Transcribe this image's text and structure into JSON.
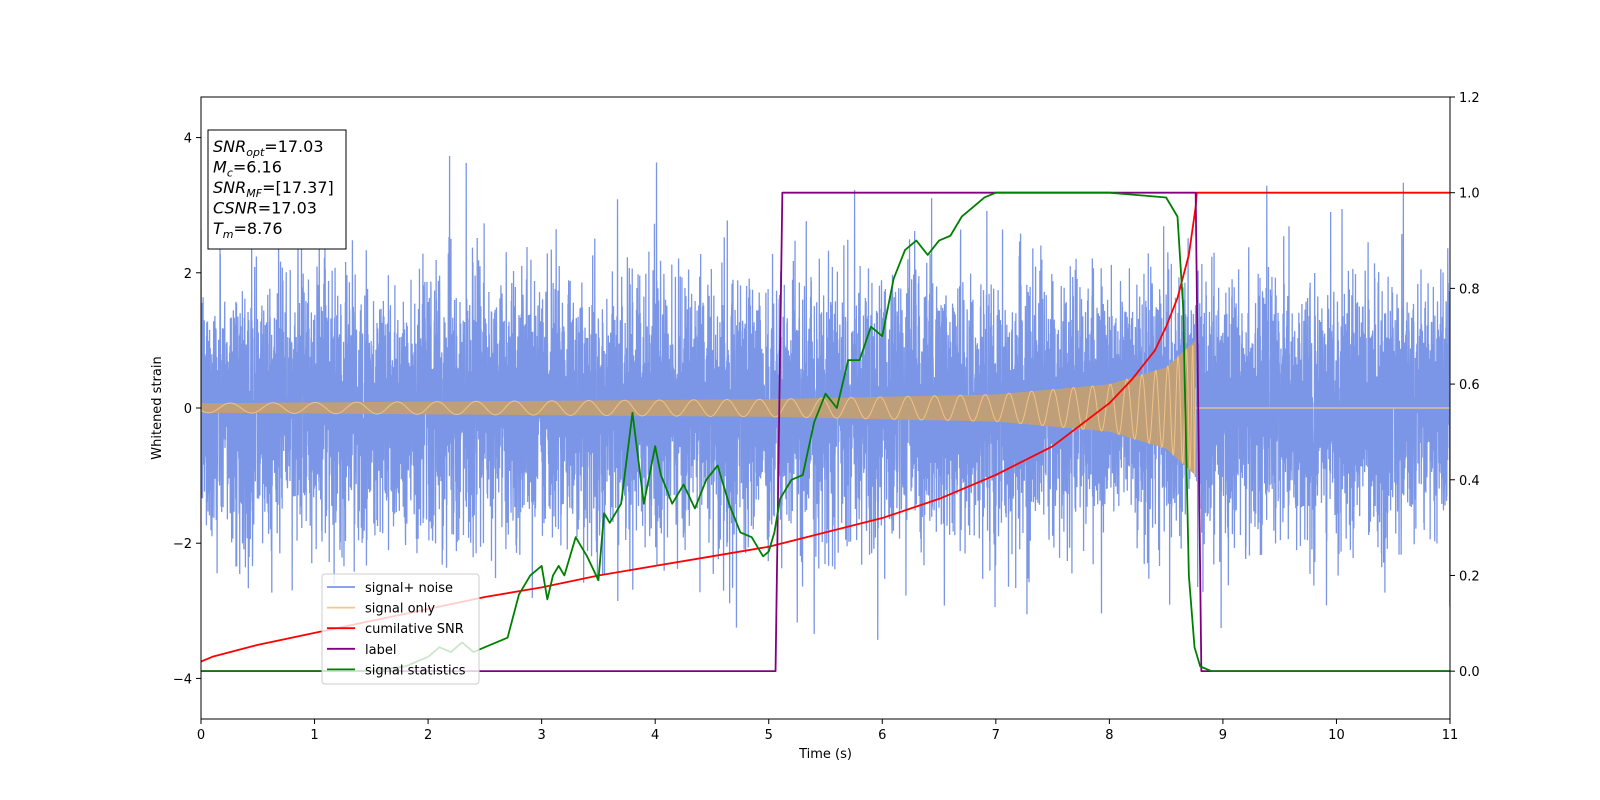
{
  "chart_data": {
    "type": "line",
    "xlabel": "Time (s)",
    "ylabel_left": "Whitened strain",
    "ylabel_right": "",
    "xlim": [
      0,
      11
    ],
    "ylim_left": [
      -4.6,
      4.6
    ],
    "ylim_right": [
      -0.1,
      1.2
    ],
    "x_ticks": [
      0,
      1,
      2,
      3,
      4,
      5,
      6,
      7,
      8,
      9,
      10,
      11
    ],
    "y_ticks_left": [
      -4,
      -2,
      0,
      2,
      4
    ],
    "y_ticks_right": [
      0.0,
      0.2,
      0.4,
      0.6,
      0.8,
      1.0,
      1.2
    ],
    "y_ticks_right_labels": [
      "0.0",
      "0.2",
      "0.4",
      "0.6",
      "0.8",
      "1.0",
      "1.2"
    ],
    "annotation": {
      "lines": [
        {
          "main": "SNR",
          "sub": "opt",
          "rest": "=17.03"
        },
        {
          "main": "M",
          "sub": "c",
          "rest": "=6.16"
        },
        {
          "main": "SNR",
          "sub": "MF",
          "rest": "=[17.37]"
        },
        {
          "main": "CSNR",
          "sub": "",
          "rest": "=17.03"
        },
        {
          "main": "T",
          "sub": "m",
          "rest": "=8.76"
        }
      ]
    },
    "legend": {
      "placement": "lower-left",
      "entries": [
        {
          "label": "signal+ noise",
          "color": "#7b96e6"
        },
        {
          "label": "signal only",
          "color": "#f5c687"
        },
        {
          "label": "cumilative SNR",
          "color": "#ff0000"
        },
        {
          "label": "label",
          "color": "#800080"
        },
        {
          "label": "signal statistics",
          "color": "#008000"
        }
      ]
    },
    "series": [
      {
        "name": "signal+ noise",
        "axis": "left",
        "color": "#7b96e6",
        "description_type": "noise",
        "noise_std": 0.95,
        "x_range": [
          0,
          11
        ]
      },
      {
        "name": "signal only",
        "axis": "left",
        "color": "#c39f73",
        "description_type": "chirp",
        "t_merger": 8.76,
        "amplitude_at": [
          [
            0,
            0.07
          ],
          [
            5,
            0.13
          ],
          [
            7,
            0.2
          ],
          [
            8,
            0.35
          ],
          [
            8.5,
            0.6
          ],
          [
            8.76,
            1.0
          ]
        ]
      },
      {
        "name": "cumilative SNR",
        "axis": "right",
        "color": "#ff0000",
        "x": [
          0,
          0.1,
          0.5,
          1,
          1.5,
          2,
          2.5,
          3,
          3.5,
          4,
          4.5,
          5,
          5.5,
          6,
          6.5,
          7,
          7.5,
          8,
          8.2,
          8.4,
          8.5,
          8.6,
          8.7,
          8.76,
          8.77,
          11
        ],
        "y": [
          0.02,
          0.03,
          0.055,
          0.08,
          0.105,
          0.13,
          0.155,
          0.175,
          0.2,
          0.22,
          0.24,
          0.26,
          0.29,
          0.32,
          0.36,
          0.41,
          0.47,
          0.56,
          0.61,
          0.67,
          0.72,
          0.78,
          0.87,
          0.97,
          1.0,
          1.0
        ]
      },
      {
        "name": "label",
        "axis": "right",
        "color": "#800080",
        "x": [
          0,
          5.06,
          5.12,
          8.76,
          8.81,
          11
        ],
        "y": [
          0.0,
          0.0,
          1.0,
          1.0,
          0.0,
          0.0
        ]
      },
      {
        "name": "signal statistics",
        "axis": "right",
        "color": "#008000",
        "x": [
          0,
          1.5,
          1.8,
          2.0,
          2.1,
          2.2,
          2.3,
          2.4,
          2.5,
          2.6,
          2.7,
          2.8,
          2.9,
          3.0,
          3.05,
          3.1,
          3.15,
          3.2,
          3.3,
          3.4,
          3.5,
          3.55,
          3.6,
          3.7,
          3.8,
          3.9,
          4.0,
          4.05,
          4.15,
          4.25,
          4.35,
          4.45,
          4.55,
          4.65,
          4.75,
          4.85,
          4.95,
          5.0,
          5.05,
          5.1,
          5.2,
          5.3,
          5.4,
          5.5,
          5.6,
          5.7,
          5.8,
          5.9,
          6.0,
          6.1,
          6.2,
          6.3,
          6.4,
          6.5,
          6.6,
          6.7,
          6.8,
          6.9,
          7.0,
          7.2,
          7.5,
          8.0,
          8.5,
          8.6,
          8.65,
          8.7,
          8.75,
          8.8,
          8.9,
          9.0,
          11
        ],
        "y": [
          0.0,
          0.0,
          0.01,
          0.03,
          0.05,
          0.04,
          0.06,
          0.04,
          0.05,
          0.06,
          0.07,
          0.16,
          0.2,
          0.22,
          0.15,
          0.2,
          0.22,
          0.2,
          0.28,
          0.24,
          0.19,
          0.33,
          0.31,
          0.35,
          0.54,
          0.35,
          0.47,
          0.41,
          0.35,
          0.39,
          0.34,
          0.4,
          0.43,
          0.35,
          0.29,
          0.28,
          0.24,
          0.25,
          0.29,
          0.36,
          0.4,
          0.41,
          0.52,
          0.58,
          0.55,
          0.65,
          0.65,
          0.72,
          0.7,
          0.82,
          0.88,
          0.9,
          0.87,
          0.9,
          0.91,
          0.95,
          0.97,
          0.99,
          1.0,
          1.0,
          1.0,
          1.0,
          0.99,
          0.95,
          0.76,
          0.2,
          0.05,
          0.01,
          0.0,
          0.0,
          0.0
        ]
      }
    ]
  }
}
